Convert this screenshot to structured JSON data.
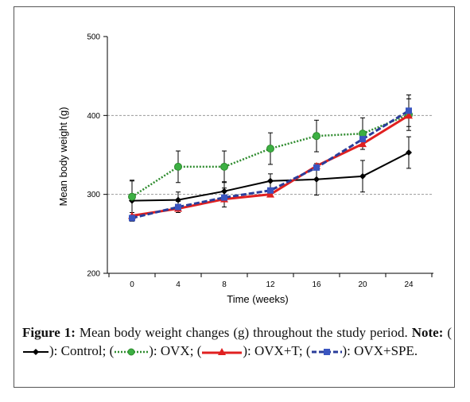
{
  "chart_data": {
    "type": "line",
    "xlabel": "Time (weeks)",
    "ylabel": "Mean body weight (g)",
    "categories": [
      "0",
      "4",
      "8",
      "12",
      "16",
      "20",
      "24"
    ],
    "x": [
      0,
      4,
      8,
      12,
      16,
      20,
      24
    ],
    "ylim": [
      200,
      500
    ],
    "yticks": [
      "200",
      "300",
      "400",
      "500"
    ],
    "grid": "horizontal dashed at 300 and 400",
    "series": [
      {
        "name": "Control",
        "color": "#000000",
        "style": "solid",
        "marker": "diamond",
        "values": [
          292,
          293,
          304,
          317,
          319,
          323,
          353
        ],
        "error": [
          26,
          10,
          12,
          9,
          20,
          20,
          20
        ]
      },
      {
        "name": "OVX",
        "color": "#2e8b2e",
        "style": "dotted",
        "marker": "circle",
        "values": [
          297,
          335,
          335,
          358,
          374,
          377,
          401
        ],
        "error": [
          20,
          20,
          20,
          20,
          20,
          20,
          20
        ]
      },
      {
        "name": "OVX+T",
        "color": "#e02020",
        "style": "solid",
        "marker": "triangle",
        "values": [
          273,
          282,
          294,
          300,
          336,
          364,
          400
        ],
        "error": [
          0,
          0,
          0,
          0,
          0,
          0,
          0
        ]
      },
      {
        "name": "OVX+SPE",
        "color": "#2a3d9a",
        "style": "dashed",
        "marker": "square",
        "values": [
          270,
          284,
          296,
          305,
          334,
          370,
          406
        ],
        "error": [
          0,
          7,
          12,
          0,
          0,
          0,
          20
        ]
      }
    ]
  },
  "caption": {
    "figure_label": "Figure 1:",
    "text_before_note": " Mean body weight changes (g) throughout the study period. ",
    "note_label": "Note:",
    "items": [
      {
        "prefix": " (",
        "suffix": "): Control;"
      },
      {
        "prefix": " (",
        "suffix": "): OVX;"
      },
      {
        "prefix": " (",
        "suffix": "): OVX+T;"
      },
      {
        "prefix": " (",
        "suffix": "): OVX+SPE."
      }
    ]
  }
}
